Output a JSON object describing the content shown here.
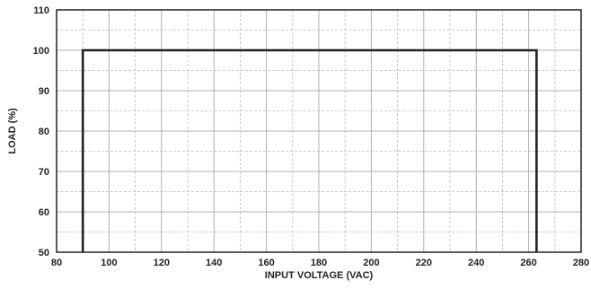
{
  "chart_data": {
    "type": "line",
    "title": "",
    "xlabel": "INPUT VOLTAGE (VAC)",
    "ylabel": "LOAD (%)",
    "xlim": [
      80,
      280
    ],
    "ylim": [
      50,
      110
    ],
    "x_ticks": [
      80,
      100,
      120,
      140,
      160,
      180,
      200,
      220,
      240,
      260,
      280
    ],
    "y_ticks": [
      50,
      60,
      70,
      80,
      90,
      100,
      110
    ],
    "grid": "on",
    "series": [
      {
        "x": [
          90,
          90,
          263,
          263
        ],
        "y": [
          50,
          100,
          100,
          50
        ]
      }
    ]
  }
}
